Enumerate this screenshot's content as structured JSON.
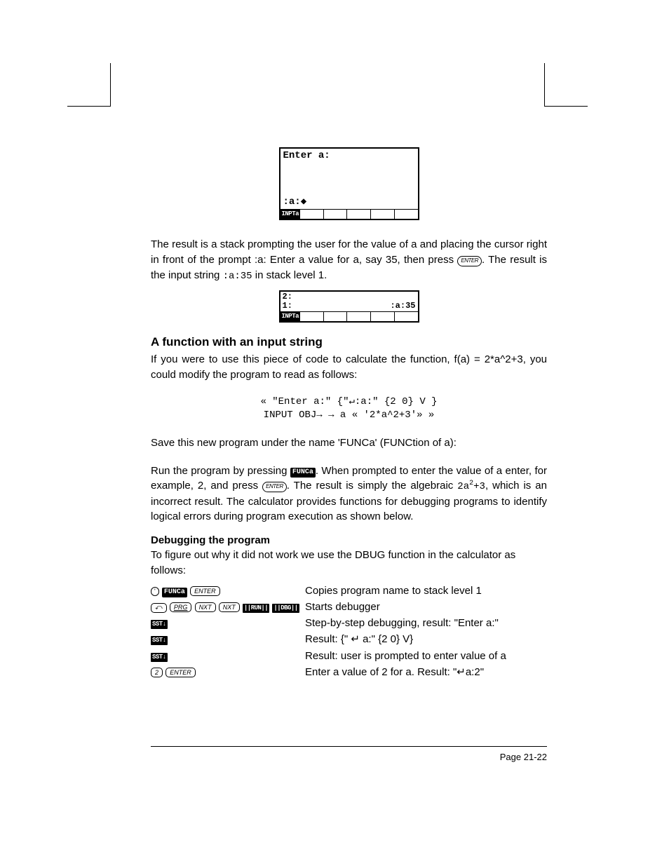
{
  "screen1": {
    "top_line": "Enter a:",
    "prompt_line": ":a:◆",
    "menu_label": "INPTa"
  },
  "para1_a": "The result is a stack prompting the user for the value of a and placing the cursor right in front of the prompt :a:  Enter a value for a, say 35, then press ",
  "enter_key": "ENTER",
  "para1_b": ".  The result is the input string ",
  "para1_code": ":a:35",
  "para1_c": " in stack level 1.",
  "screen2": {
    "row1_left": "2:",
    "row1_right": "",
    "row2_left": "1:",
    "row2_right": ":a:35",
    "menu_label": "INPTa"
  },
  "heading": "A function with an input string",
  "para2": "If you were to use this piece of code to calculate the function, f(a) = 2*a^2+3, you could modify the program to read as follows:",
  "code_line1": "« \"Enter a:\" {\"↵:a:\" {2 0} V }",
  "code_line2": "INPUT OBJ→ → a « '2*a^2+3'» »",
  "para3": "Save this new program under the name 'FUNCa' (FUNCtion of a):",
  "para4_a": "Run the program by pressing ",
  "softkey_funca": "FUNCa",
  "para4_b": ".  When prompted to enter the value of a enter, for example, 2, and press ",
  "para4_c": ".  The result is simply the algebraic ",
  "para4_code": "2a",
  "para4_sup": "2",
  "para4_code2": "+3",
  "para4_d": ", which is an incorrect result.  The calculator provides functions for debugging programs to identify logical errors during program execution as shown below.",
  "h3": "Debugging the program",
  "para5": "To figure out why it did not work we use the DBUG function in the calculator as follows:",
  "dbg": {
    "rows": [
      {
        "keys": [
          {
            "type": "oval",
            "text": "'"
          },
          {
            "type": "soft",
            "text": "FUNCa"
          },
          {
            "type": "hard",
            "text": "ENTER"
          }
        ],
        "desc": "Copies program name to stack level 1"
      },
      {
        "keys": [
          {
            "type": "shift",
            "text": "⤺"
          },
          {
            "type": "ital",
            "text": "PRG"
          },
          {
            "type": "hard",
            "text": "NXT"
          },
          {
            "type": "hard",
            "text": "NXT"
          },
          {
            "type": "softbar",
            "text": "||RUN||"
          },
          {
            "type": "softbar",
            "text": "||DBG||"
          }
        ],
        "desc": "Starts debugger"
      },
      {
        "keys": [
          {
            "type": "softbar",
            "text": "SST↓"
          }
        ],
        "desc": "Step-by-step debugging, result:  \"Enter a:\""
      },
      {
        "keys": [
          {
            "type": "softbar",
            "text": "SST↓"
          }
        ],
        "desc": "Result: {\" ↵ a:\" {2 0} V}"
      },
      {
        "keys": [
          {
            "type": "softbar",
            "text": "SST↓"
          }
        ],
        "desc": "Result: user is prompted to enter value of a"
      },
      {
        "keys": [
          {
            "type": "hard",
            "text": "2"
          },
          {
            "type": "hard",
            "text": "ENTER"
          }
        ],
        "desc": "Enter a value of 2 for a.  Result: \"↵a:2\""
      }
    ]
  },
  "footer": "Page 21-22"
}
